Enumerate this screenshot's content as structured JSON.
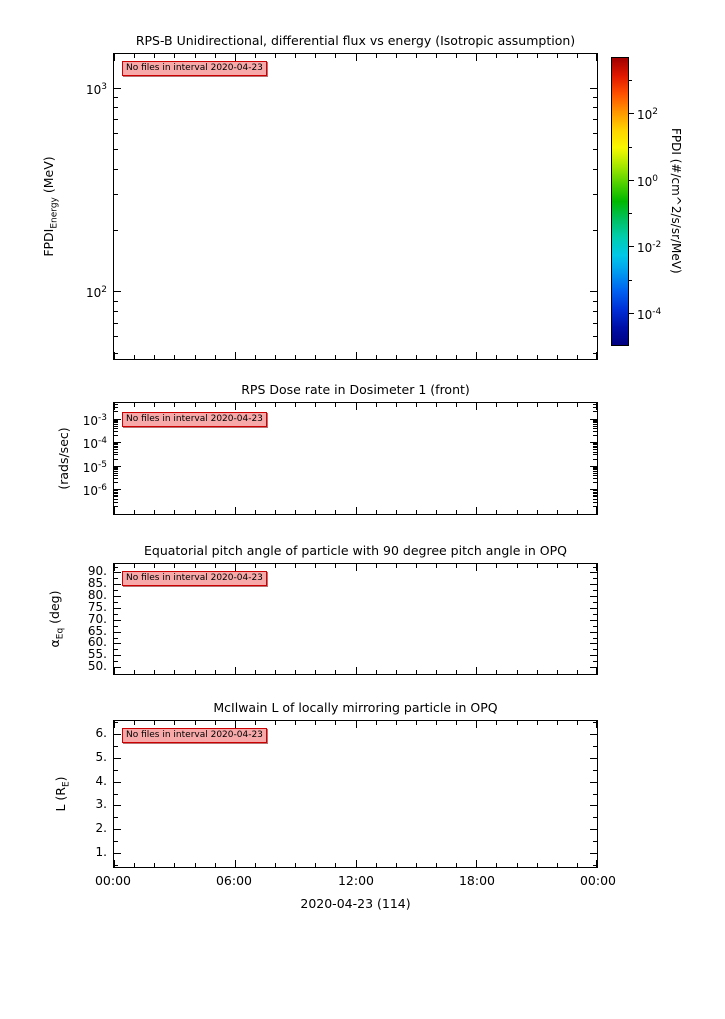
{
  "figure": {
    "background": "#ffffff",
    "frame_color": "#000000",
    "badge": {
      "text": "No files in interval 2020-04-23",
      "bg": "#f7a8a8",
      "border": "#cc0000"
    },
    "xaxis": {
      "label": "2020-04-23 (114)",
      "ticks": [
        {
          "pos": 0.0,
          "label": "00:00"
        },
        {
          "pos": 0.25,
          "label": "06:00"
        },
        {
          "pos": 0.5,
          "label": "12:00"
        },
        {
          "pos": 0.75,
          "label": "18:00"
        },
        {
          "pos": 1.0,
          "label": "00:00"
        }
      ],
      "minor_divisions": 6
    }
  },
  "chart_data": [
    {
      "type": "heatmap",
      "title": "RPS-B  Unidirectional, differential flux vs energy (Isotropic assumption)",
      "ylabel": {
        "main": "FPDI",
        "sub": "Energy",
        "rest": " (MeV)"
      },
      "yscale": "log",
      "ylim": [
        47,
        1480
      ],
      "yticks": [
        {
          "value": 100,
          "exp": "2"
        },
        {
          "value": 1000,
          "exp": "3"
        }
      ],
      "grid": false,
      "x": [],
      "values": [],
      "annotation": "No files in interval 2020-04-23",
      "colorbar": {
        "label": "FPDI (#/cm^2/s/sr/MeV)",
        "scale": "log",
        "lim": [
          1e-05,
          5000
        ],
        "ticks": [
          {
            "value": 100,
            "exp": "2"
          },
          {
            "value": 1,
            "exp": "0"
          },
          {
            "value": 0.01,
            "exp": "-2"
          },
          {
            "value": 0.0001,
            "exp": "-4"
          }
        ],
        "minor_tick_values": [
          1000,
          10,
          0.1,
          0.001
        ],
        "colormap": "rainbow",
        "colormap_stops": [
          "#a00000",
          "#e01800",
          "#ff5000",
          "#ff9400",
          "#ffd200",
          "#f8f800",
          "#a8e800",
          "#50d000",
          "#00b800",
          "#00c060",
          "#00cdb0",
          "#00c8e8",
          "#0098f0",
          "#0060f0",
          "#0030d8",
          "#0010a8",
          "#000080"
        ]
      }
    },
    {
      "type": "line",
      "title": "RPS  Dose rate in Dosimeter 1 (front)",
      "ylabel": {
        "main": "",
        "sub": "",
        "rest": "(rads/sec)"
      },
      "yscale": "log",
      "ylim": [
        1e-07,
        0.005
      ],
      "yticks": [
        {
          "value": 0.001,
          "exp": "-3"
        },
        {
          "value": 0.0001,
          "exp": "-4"
        },
        {
          "value": 1e-05,
          "exp": "-5"
        },
        {
          "value": 1e-06,
          "exp": "-6"
        }
      ],
      "grid": false,
      "x": [],
      "y": [],
      "annotation": "No files in interval 2020-04-23"
    },
    {
      "type": "line",
      "title": "Equatorial pitch angle of particle with 90 degree pitch angle in OPQ",
      "ylabel": {
        "main": "α",
        "sub": "Eq",
        "rest": " (deg)"
      },
      "yscale": "linear",
      "ylim": [
        47.5,
        94
      ],
      "yticks": [
        {
          "value": 90,
          "label": "90."
        },
        {
          "value": 85,
          "label": "85."
        },
        {
          "value": 80,
          "label": "80."
        },
        {
          "value": 75,
          "label": "75."
        },
        {
          "value": 70,
          "label": "70."
        },
        {
          "value": 65,
          "label": "65."
        },
        {
          "value": 60,
          "label": "60."
        },
        {
          "value": 55,
          "label": "55."
        },
        {
          "value": 50,
          "label": "50."
        }
      ],
      "yminor_step": 2.5,
      "grid": false,
      "x": [],
      "y": [],
      "annotation": "No files in interval 2020-04-23"
    },
    {
      "type": "line",
      "title": "McIlwain L of locally mirroring particle in OPQ",
      "ylabel": {
        "main": "L (R",
        "sub": "E",
        "rest": ")"
      },
      "yscale": "linear",
      "ylim": [
        0.45,
        6.6
      ],
      "yticks": [
        {
          "value": 6,
          "label": "6."
        },
        {
          "value": 5,
          "label": "5."
        },
        {
          "value": 4,
          "label": "4."
        },
        {
          "value": 3,
          "label": "3."
        },
        {
          "value": 2,
          "label": "2."
        },
        {
          "value": 1,
          "label": "1."
        }
      ],
      "yminor_step": 0.5,
      "grid": false,
      "xlabel": "2020-04-23 (114)",
      "x": [],
      "y": [],
      "annotation": "No files in interval 2020-04-23"
    }
  ]
}
